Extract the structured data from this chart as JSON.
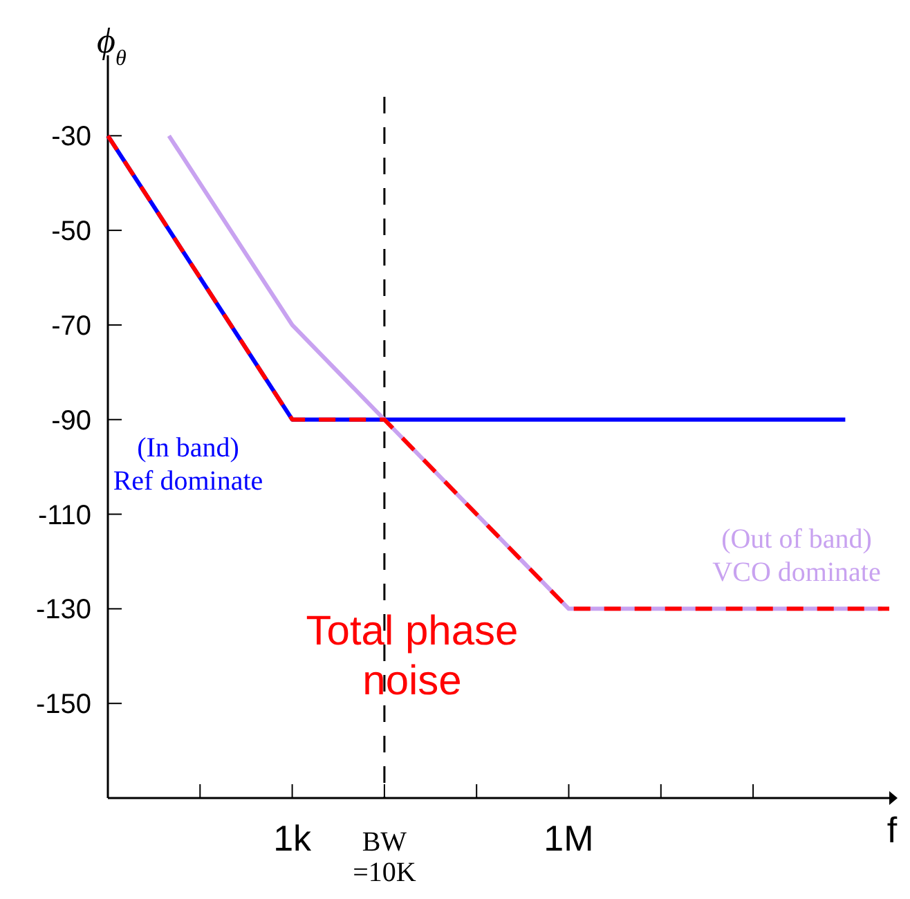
{
  "chart_data": {
    "type": "line",
    "xlabel": "f",
    "ylabel": "ϕ$_{θ}$",
    "log": "x",
    "xlim": [
      10,
      3000000000
    ],
    "xticks": [
      {
        "value": 100,
        "label": null
      },
      {
        "value": 1000,
        "label": "1k"
      },
      {
        "value": 10000,
        "label": "BW\n=10K"
      },
      {
        "value": 100000,
        "label": null
      },
      {
        "value": 1000000,
        "label": "1M"
      },
      {
        "value": 10000000,
        "label": null
      },
      {
        "value": 100000000,
        "label": null
      }
    ],
    "ylim": [
      -170,
      -13
    ],
    "yticks": [
      -30,
      -50,
      -70,
      -90,
      -110,
      -130,
      -150
    ],
    "grid": false,
    "legend": false,
    "series": [
      {
        "name": "(In band)\nRef dominate",
        "color": "#0000ff",
        "line_style": "solid",
        "x": [
          10,
          1000,
          1000000000
        ],
        "values": [
          -30,
          -90,
          -90
        ]
      },
      {
        "name": "(Out of band)\nVCO dominate",
        "color": "#c8a2f0",
        "line_style": "solid",
        "x": [
          46,
          1000,
          10000,
          1000000,
          2500000000
        ],
        "values": [
          -30,
          -70,
          -90,
          -130,
          -130
        ]
      },
      {
        "color": "#ff0000",
        "line_style": "dashed",
        "x": [
          10,
          1000,
          10000,
          1000000,
          3000000000
        ],
        "values": [
          -30,
          -90,
          -90,
          -130,
          -130
        ]
      }
    ],
    "ref_lines": [
      {
        "axis": "x",
        "value": 10000,
        "color": "#000000",
        "line_style": "dashed"
      }
    ],
    "annotations": [
      "Total phase\nnoise"
    ]
  }
}
